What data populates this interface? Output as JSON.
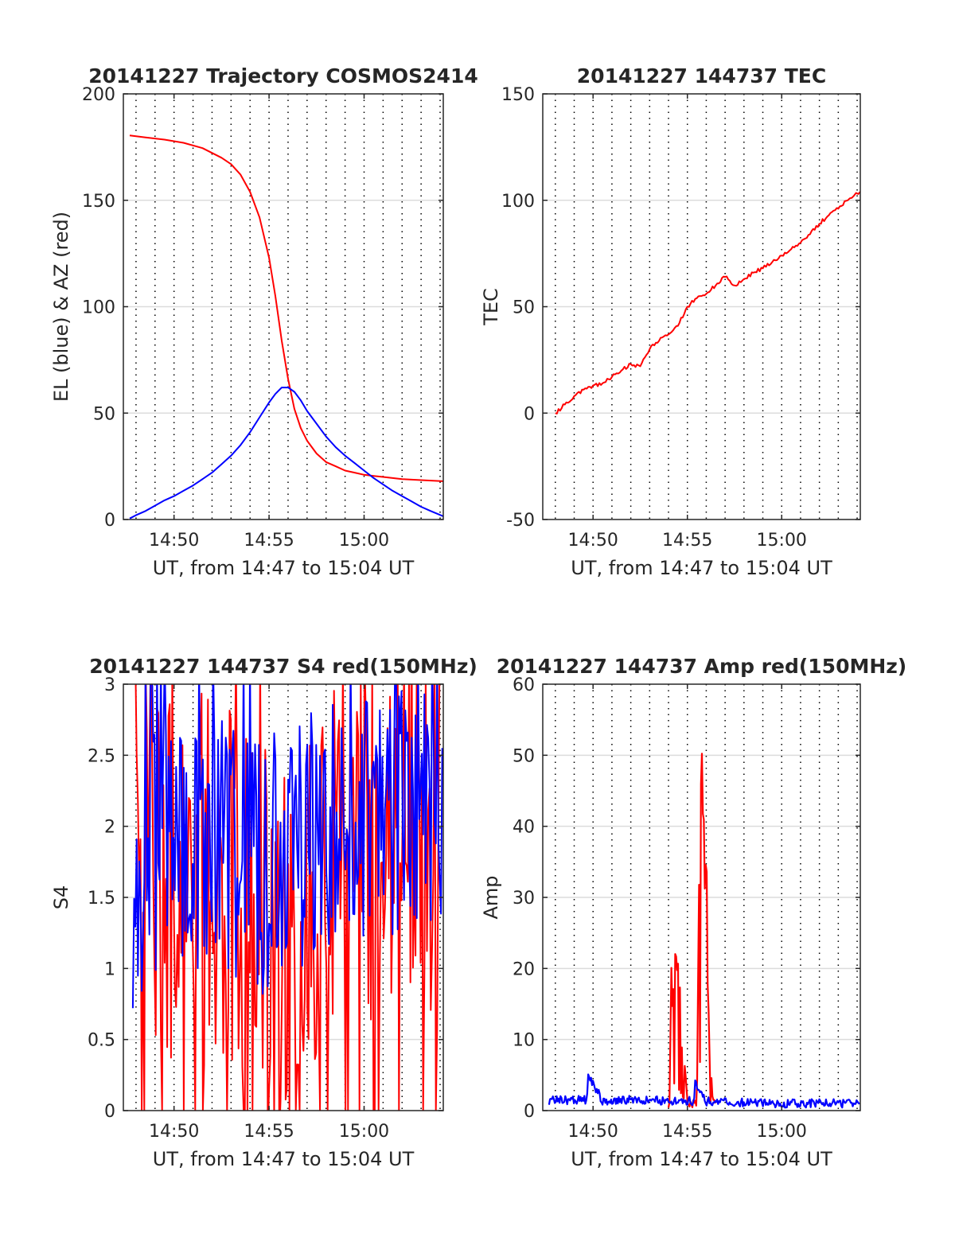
{
  "chart_data": [
    {
      "type": "line",
      "title": "20141227 Trajectory COSMOS2414",
      "xlabel": "UT, from 14:47 to 15:04 UT",
      "ylabel": "EL (blue) & AZ (red)",
      "xlim": [
        "14:47:20",
        "15:04:10"
      ],
      "ylim": [
        0,
        200
      ],
      "xticks": [
        "14:50",
        "14:55",
        "15:00"
      ],
      "yticks": [
        0,
        50,
        100,
        150,
        200
      ],
      "grid": "on",
      "series": [
        {
          "color": "#ff0000",
          "x": [
            "14:47:40",
            "14:48:30",
            "14:49:30",
            "14:50:30",
            "14:51:30",
            "14:52:30",
            "14:53:00",
            "14:53:30",
            "14:54:00",
            "14:54:30",
            "14:55:00",
            "14:55:20",
            "14:55:40",
            "14:56:00",
            "14:56:20",
            "14:56:40",
            "14:57:00",
            "14:57:30",
            "14:58:00",
            "14:58:30",
            "14:59:00",
            "14:59:30",
            "15:00:00",
            "15:00:30",
            "15:01:00",
            "15:02:00",
            "15:03:00",
            "15:04:10"
          ],
          "values": [
            180.5,
            179.5,
            178.5,
            177,
            174.5,
            170,
            167,
            162,
            154,
            142,
            123,
            105,
            84,
            66,
            52,
            43,
            37,
            31,
            27,
            25,
            23,
            22,
            21,
            20.5,
            20,
            19,
            18.5,
            18
          ]
        },
        {
          "color": "#0000ff",
          "x": [
            "14:47:40",
            "14:48:00",
            "14:48:30",
            "14:49:00",
            "14:49:30",
            "14:50:00",
            "14:50:30",
            "14:51:00",
            "14:51:30",
            "14:52:00",
            "14:52:30",
            "14:53:00",
            "14:53:30",
            "14:54:00",
            "14:54:30",
            "14:55:00",
            "14:55:20",
            "14:55:40",
            "14:56:00",
            "14:56:20",
            "14:56:40",
            "14:57:00",
            "14:57:30",
            "14:58:00",
            "14:58:30",
            "14:59:00",
            "14:59:30",
            "15:00:00",
            "15:00:30",
            "15:01:00",
            "15:01:30",
            "15:02:00",
            "15:02:30",
            "15:03:00",
            "15:03:30",
            "15:04:10"
          ],
          "values": [
            0.5,
            2,
            4,
            6.5,
            9,
            11,
            13.5,
            16,
            19,
            22,
            26,
            30,
            35,
            41,
            48,
            55,
            59,
            62,
            62,
            60,
            56,
            51,
            45,
            39,
            34,
            30,
            26.5,
            23,
            19.5,
            16.5,
            13.5,
            11,
            8.5,
            6,
            4,
            1.5
          ]
        }
      ]
    },
    {
      "type": "line",
      "title": "20141227 144737 TEC",
      "xlabel": "UT, from 14:47 to 15:04 UT",
      "ylabel": "TEC",
      "xlim": [
        "14:47:20",
        "15:04:10"
      ],
      "ylim": [
        -50,
        150
      ],
      "xticks": [
        "14:50",
        "14:55",
        "15:00"
      ],
      "yticks": [
        -50,
        0,
        50,
        100,
        150
      ],
      "grid": "on",
      "series": [
        {
          "color": "#ff0000",
          "x": [
            "14:48:00",
            "14:48:30",
            "14:49:00",
            "14:49:30",
            "14:50:00",
            "14:50:30",
            "14:51:00",
            "14:51:30",
            "14:52:00",
            "14:52:30",
            "14:53:00",
            "14:53:30",
            "14:54:00",
            "14:54:30",
            "14:55:00",
            "14:55:30",
            "14:56:00",
            "14:56:30",
            "14:57:00",
            "14:57:30",
            "14:58:00",
            "14:58:30",
            "14:59:00",
            "14:59:30",
            "15:00:00",
            "15:00:30",
            "15:01:00",
            "15:01:30",
            "15:02:00",
            "15:02:30",
            "15:03:00",
            "15:03:30",
            "15:04:10"
          ],
          "values": [
            0,
            4,
            8,
            11,
            13,
            14,
            17,
            20,
            23,
            22,
            30,
            34,
            37,
            41,
            50,
            54,
            56,
            60,
            64,
            60,
            63,
            66,
            68,
            71,
            74,
            77,
            80,
            84,
            89,
            93,
            96,
            100,
            104
          ]
        }
      ]
    },
    {
      "type": "line",
      "title": "20141227 144737 S4 red(150MHz)",
      "xlabel": "UT, from 14:47 to 15:04 UT",
      "ylabel": "S4",
      "xlim": [
        "14:47:20",
        "15:04:10"
      ],
      "ylim": [
        0,
        3
      ],
      "xticks": [
        "14:50",
        "14:55",
        "15:00"
      ],
      "yticks": [
        0,
        0.5,
        1,
        1.5,
        2,
        2.5,
        3
      ],
      "grid": "on",
      "series": [
        {
          "color": "#ff0000",
          "x": [
            "14:47:50",
            "14:48:30",
            "14:49:30",
            "14:50:30",
            "14:51:30",
            "14:52:30",
            "14:53:30",
            "14:54:30",
            "14:55:00",
            "14:55:30",
            "14:56:00",
            "14:56:30",
            "14:57:30",
            "14:58:30",
            "14:59:30",
            "15:00:30",
            "15:01:30",
            "15:02:30",
            "15:03:30",
            "15:04:10"
          ],
          "values": [
            1.8,
            1.9,
            1.8,
            1.7,
            1.7,
            1.6,
            1.4,
            1.3,
            1.1,
            0.9,
            1.1,
            1.4,
            1.6,
            1.9,
            2.0,
            2.0,
            2.0,
            2.0,
            2.0,
            1.9
          ]
        },
        {
          "color": "#0000ff",
          "x": [
            "14:47:50",
            "14:48:30",
            "14:49:30",
            "14:50:30",
            "14:51:30",
            "14:52:30",
            "14:53:30",
            "14:54:30",
            "14:55:30",
            "14:56:30",
            "14:57:30",
            "14:58:30",
            "14:59:30",
            "15:00:30",
            "15:01:30",
            "15:02:30",
            "15:03:30",
            "15:04:10"
          ],
          "values": [
            1.6,
            1.8,
            1.9,
            1.9,
            1.8,
            1.9,
            1.8,
            1.7,
            1.8,
            1.9,
            1.9,
            2.0,
            2.0,
            2.0,
            2.1,
            2.0,
            2.1,
            2.1
          ]
        }
      ]
    },
    {
      "type": "line",
      "title": "20141227 144737 Amp red(150MHz)",
      "xlabel": "UT, from 14:47 to 15:04 UT",
      "ylabel": "Amp",
      "xlim": [
        "14:47:20",
        "15:04:10"
      ],
      "ylim": [
        0,
        60
      ],
      "xticks": [
        "14:50",
        "14:55",
        "15:00"
      ],
      "yticks": [
        0,
        10,
        20,
        30,
        40,
        50,
        60
      ],
      "grid": "on",
      "series": [
        {
          "color": "#ff0000",
          "x": [
            "14:54:00",
            "14:54:10",
            "14:54:20",
            "14:54:30",
            "14:54:40",
            "14:54:50",
            "14:55:00",
            "14:55:30",
            "14:55:40",
            "14:55:50",
            "14:56:00",
            "14:56:10",
            "14:56:20",
            "14:56:30"
          ],
          "values": [
            1,
            17,
            19.5,
            16,
            12,
            8,
            1,
            1,
            34,
            41,
            30,
            8,
            2,
            1
          ]
        },
        {
          "color": "#0000ff",
          "x": [
            "14:47:40",
            "14:49:00",
            "14:49:40",
            "14:49:45",
            "14:50:30",
            "14:51:00",
            "14:52:00",
            "14:53:00",
            "14:54:00",
            "14:55:00",
            "14:55:20",
            "14:55:25",
            "14:56:00",
            "14:57:00",
            "14:58:00",
            "14:59:00",
            "15:00:00",
            "15:01:00",
            "15:02:00",
            "15:03:00",
            "15:04:10"
          ],
          "values": [
            1.4,
            1.5,
            1.5,
            5,
            1.4,
            1.4,
            1.5,
            1.5,
            1.3,
            1.4,
            1.3,
            4,
            1.3,
            1.2,
            1.1,
            1.1,
            1.0,
            1.0,
            1.1,
            1.0,
            1.0
          ]
        }
      ]
    }
  ]
}
